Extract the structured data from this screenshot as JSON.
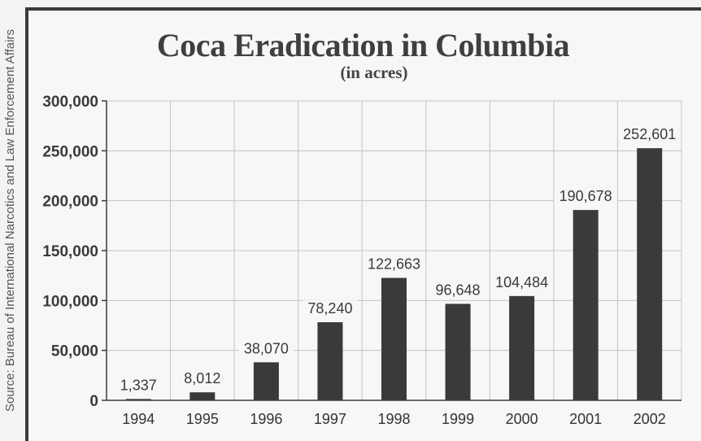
{
  "source_note": "Source: Bureau of International Narcotics and Law Enforcement Affairs",
  "chart_data": {
    "type": "bar",
    "title": "Coca Eradication in Columbia",
    "subtitle": "(in acres)",
    "categories": [
      "1994",
      "1995",
      "1996",
      "1997",
      "1998",
      "1999",
      "2000",
      "2001",
      "2002"
    ],
    "values": [
      1337,
      8012,
      38070,
      78240,
      122663,
      96648,
      104484,
      190678,
      252601
    ],
    "data_labels": [
      "1,337",
      "8,012",
      "38,070",
      "78,240",
      "122,663",
      "96,648",
      "104,484",
      "190,678",
      "252,601"
    ],
    "y_ticks": [
      "0",
      "50,000",
      "100,000",
      "150,000",
      "200,000",
      "250,000",
      "300,000"
    ],
    "ylim": [
      0,
      300000
    ],
    "grid": true,
    "bar_color": "#3a3a3a",
    "grid_color": "#c4c4c4"
  }
}
